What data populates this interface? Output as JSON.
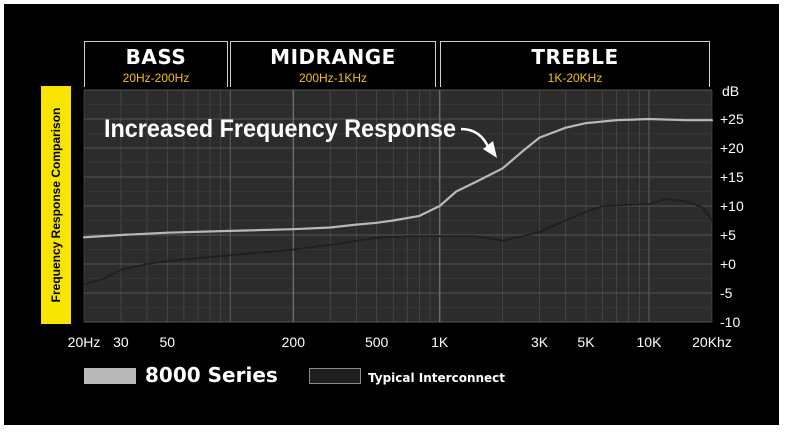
{
  "bands": [
    {
      "name": "BASS",
      "range": "20Hz-200Hz"
    },
    {
      "name": "MIDRANGE",
      "range": "200Hz-1KHz"
    },
    {
      "name": "TREBLE",
      "range": "1K-20KHz"
    }
  ],
  "side_label": "Frequency Response Comparison",
  "colors": {
    "background": "#000000",
    "plot": "#2c2c2c",
    "grid": "#4d4d4d",
    "band_text": "#f5c400",
    "side_label_bg": "#f7e500",
    "series_8000": "#b8b8b8",
    "series_typical": "#1f1f1f",
    "typical_swatch_border": "#8a8a8a"
  },
  "chart_data": {
    "type": "line",
    "title": "Increased Frequency Response",
    "ylabel": "dB",
    "xlabel": "",
    "xscale": "log",
    "xlim": [
      20,
      20000
    ],
    "ylim": [
      -10,
      30
    ],
    "xticks": [
      {
        "value": 20,
        "label": "20Hz"
      },
      {
        "value": 30,
        "label": "30"
      },
      {
        "value": 50,
        "label": "50"
      },
      {
        "value": 200,
        "label": "200"
      },
      {
        "value": 500,
        "label": "500"
      },
      {
        "value": 1000,
        "label": "1K"
      },
      {
        "value": 3000,
        "label": "3K"
      },
      {
        "value": 5000,
        "label": "5K"
      },
      {
        "value": 10000,
        "label": "10K"
      },
      {
        "value": 20000,
        "label": "20Khz"
      }
    ],
    "yticks": [
      {
        "value": 25,
        "label": "+25"
      },
      {
        "value": 20,
        "label": "+20"
      },
      {
        "value": 15,
        "label": "+15"
      },
      {
        "value": 10,
        "label": "+10"
      },
      {
        "value": 5,
        "label": "+5"
      },
      {
        "value": 0,
        "label": "+0"
      },
      {
        "value": -5,
        "label": "-5"
      },
      {
        "value": -10,
        "label": "-10"
      }
    ],
    "series": [
      {
        "name": "8000 Series",
        "x": [
          20,
          30,
          50,
          100,
          200,
          300,
          400,
          500,
          600,
          800,
          1000,
          1200,
          1500,
          2000,
          2500,
          3000,
          4000,
          5000,
          7000,
          10000,
          15000,
          20000
        ],
        "values": [
          4.6,
          5.0,
          5.4,
          5.7,
          6.0,
          6.3,
          6.8,
          7.1,
          7.5,
          8.3,
          10.0,
          12.5,
          14.2,
          16.5,
          19.5,
          21.8,
          23.5,
          24.3,
          24.8,
          25.0,
          24.8,
          24.8
        ]
      },
      {
        "name": "Typical Interconnect",
        "x": [
          20,
          25,
          30,
          40,
          50,
          70,
          100,
          200,
          300,
          500,
          700,
          1000,
          1500,
          2000,
          3000,
          4000,
          5000,
          6000,
          8000,
          10000,
          12000,
          15000,
          18000,
          20000
        ],
        "values": [
          -3.5,
          -2.5,
          -1.0,
          0.0,
          0.5,
          1.0,
          1.5,
          2.5,
          3.3,
          4.5,
          4.8,
          4.8,
          4.8,
          4.0,
          5.5,
          7.5,
          9.0,
          10.0,
          10.2,
          10.3,
          11.2,
          10.8,
          9.8,
          7.5
        ]
      }
    ]
  },
  "legend": [
    {
      "name": "8000 Series"
    },
    {
      "name": "Typical Interconnect"
    }
  ]
}
